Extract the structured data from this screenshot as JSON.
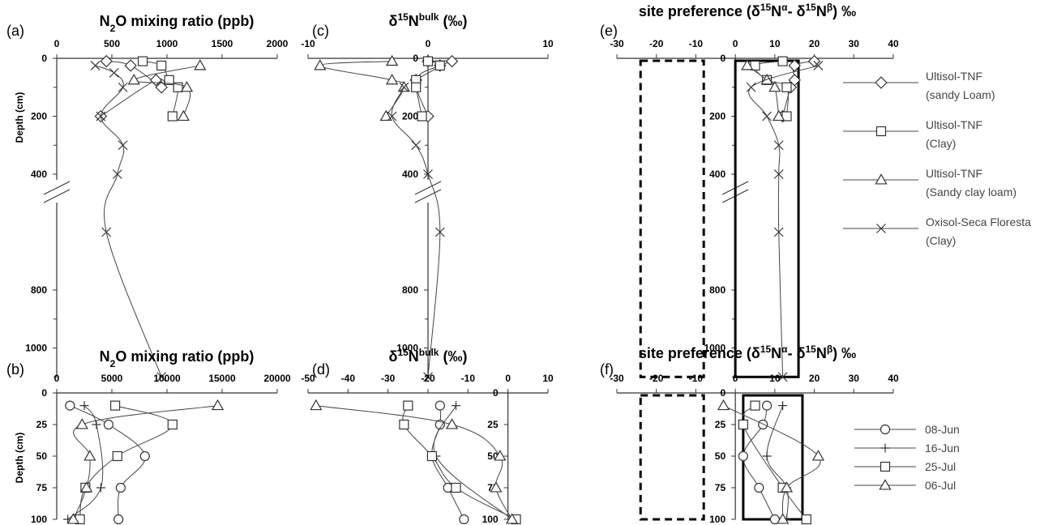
{
  "chart_data": [
    {
      "panel_label": "(a)",
      "title": "N₂O mixing ratio (ppb)",
      "title_parts": [
        "N",
        "2",
        "O mixing ratio (ppb)"
      ],
      "type": "line",
      "ylabel": "Depth (cm)",
      "xlim": [
        0,
        2000
      ],
      "xticks": [
        0,
        500,
        1000,
        1500,
        2000
      ],
      "ylim": [
        0,
        1100
      ],
      "yticks": [
        0,
        200,
        400,
        800,
        1000
      ],
      "axis_break": true,
      "series": [
        {
          "marker": "diamond",
          "points": [
            [
              450,
              10
            ],
            [
              670,
              25
            ],
            [
              950,
              100
            ],
            [
              900,
              75
            ],
            [
              400,
              200
            ]
          ]
        },
        {
          "marker": "square",
          "points": [
            [
              780,
              10
            ],
            [
              950,
              25
            ],
            [
              1020,
              75
            ],
            [
              1100,
              100
            ],
            [
              1050,
              200
            ]
          ]
        },
        {
          "marker": "triangle",
          "points": [
            [
              1300,
              25
            ],
            [
              700,
              75
            ],
            [
              1180,
              100
            ],
            [
              1150,
              200
            ]
          ]
        },
        {
          "marker": "x",
          "points": [
            [
              350,
              25
            ],
            [
              520,
              50
            ],
            [
              600,
              100
            ],
            [
              400,
              200
            ],
            [
              600,
              300
            ],
            [
              550,
              400
            ],
            [
              450,
              600
            ],
            [
              950,
              1100
            ]
          ]
        }
      ]
    },
    {
      "panel_label": "(c)",
      "title_parts": [
        "δ",
        "15",
        "N",
        "bulk",
        " (‰)"
      ],
      "type": "line",
      "xlim": [
        -10,
        10
      ],
      "xticks": [
        -10,
        0,
        10
      ],
      "ylim": [
        0,
        1100
      ],
      "yticks": [
        0,
        200,
        400,
        800,
        1000
      ],
      "axis_break": true,
      "series": [
        {
          "marker": "diamond",
          "points": [
            [
              0,
              10
            ],
            [
              2,
              10
            ],
            [
              1,
              25
            ],
            [
              -1,
              75
            ],
            [
              0,
              200
            ]
          ]
        },
        {
          "marker": "square",
          "points": [
            [
              0,
              10
            ],
            [
              1,
              25
            ],
            [
              -1,
              75
            ],
            [
              -1,
              100
            ],
            [
              -0.5,
              200
            ]
          ]
        },
        {
          "marker": "triangle",
          "points": [
            [
              -3,
              10
            ],
            [
              -9,
              25
            ],
            [
              -3,
              75
            ],
            [
              -2,
              100
            ],
            [
              -3.5,
              200
            ]
          ]
        },
        {
          "marker": "x",
          "points": [
            [
              -2,
              100
            ],
            [
              -3,
              200
            ],
            [
              -1,
              300
            ],
            [
              0,
              400
            ],
            [
              1,
              600
            ],
            [
              0,
              1100
            ]
          ]
        }
      ]
    },
    {
      "panel_label": "(e)",
      "title_parts": [
        "site preference (",
        "δ",
        "15",
        "N",
        "α",
        "- ",
        "δ",
        "15",
        "N",
        "β",
        ") ‰"
      ],
      "type": "line",
      "xlim": [
        -30,
        40
      ],
      "xticks": [
        -30,
        -20,
        -10,
        0,
        10,
        20,
        30,
        40
      ],
      "ylim": [
        0,
        1100
      ],
      "yticks": [
        0,
        200,
        400,
        800,
        1000
      ],
      "axis_break": true,
      "boxes": [
        {
          "style": "dashed",
          "x": [
            -24,
            -8
          ]
        },
        {
          "style": "solid",
          "x": [
            0,
            16
          ]
        }
      ],
      "series": [
        {
          "name": "Ultisol-TNF (sandy Loam)",
          "marker": "diamond",
          "points": [
            [
              20,
              10
            ],
            [
              15,
              25
            ],
            [
              15,
              75
            ],
            [
              14,
              100
            ],
            [
              12,
              200
            ]
          ]
        },
        {
          "name": "Ultisol-TNF (Clay)",
          "marker": "square",
          "points": [
            [
              12,
              10
            ],
            [
              5,
              25
            ],
            [
              8,
              75
            ],
            [
              13,
              100
            ],
            [
              13,
              200
            ]
          ]
        },
        {
          "name": "Ultisol-TNF (Sandy clay loam)",
          "marker": "triangle",
          "points": [
            [
              3,
              25
            ],
            [
              8,
              75
            ],
            [
              10,
              100
            ],
            [
              11,
              200
            ]
          ]
        },
        {
          "name": "Oxisol-Seca Floresta (Clay)",
          "marker": "x",
          "points": [
            [
              21,
              25
            ],
            [
              4,
              100
            ],
            [
              8,
              200
            ],
            [
              11,
              300
            ],
            [
              11,
              400
            ],
            [
              11,
              600
            ],
            [
              12,
              1100
            ]
          ]
        }
      ]
    },
    {
      "panel_label": "(b)",
      "title_parts": [
        "N",
        "2",
        "O mixing ratio (ppb)"
      ],
      "type": "line",
      "ylabel": "Depth (cm)",
      "xlim": [
        0,
        20000
      ],
      "xticks": [
        0,
        5000,
        10000,
        15000,
        20000
      ],
      "ylim": [
        0,
        100
      ],
      "yticks": [
        0,
        25,
        50,
        75,
        100
      ],
      "series": [
        {
          "name": "08-Jun",
          "marker": "circle",
          "points": [
            [
              1200,
              10
            ],
            [
              4700,
              25
            ],
            [
              8000,
              50
            ],
            [
              5800,
              75
            ],
            [
              5600,
              100
            ]
          ]
        },
        {
          "name": "16-Jun",
          "marker": "plus",
          "points": [
            [
              2500,
              10
            ],
            [
              3600,
              25
            ],
            [
              4000,
              75
            ],
            [
              1000,
              100
            ]
          ]
        },
        {
          "name": "25-Jul",
          "marker": "square",
          "points": [
            [
              5300,
              10
            ],
            [
              10500,
              25
            ],
            [
              5500,
              50
            ],
            [
              2600,
              75
            ],
            [
              2100,
              100
            ]
          ]
        },
        {
          "name": "06-Jul",
          "marker": "triangle",
          "points": [
            [
              14600,
              10
            ],
            [
              2300,
              25
            ],
            [
              3000,
              50
            ],
            [
              2700,
              75
            ],
            [
              1500,
              100
            ]
          ]
        }
      ]
    },
    {
      "panel_label": "(d)",
      "title_parts": [
        "δ",
        "15",
        "N",
        "bulk",
        " (‰)"
      ],
      "type": "line",
      "xlim": [
        -50,
        10
      ],
      "xticks": [
        -50,
        -40,
        -30,
        -20,
        -10,
        0,
        10
      ],
      "ylim": [
        0,
        100
      ],
      "yticks": [
        0,
        25,
        50,
        75,
        100
      ],
      "series": [
        {
          "name": "08-Jun",
          "marker": "circle",
          "points": [
            [
              -17,
              10
            ],
            [
              -17,
              25
            ],
            [
              -19,
              50
            ],
            [
              -15,
              75
            ],
            [
              -11,
              100
            ]
          ]
        },
        {
          "name": "16-Jun",
          "marker": "plus",
          "points": [
            [
              -13,
              10
            ],
            [
              -18,
              50
            ],
            [
              1,
              100
            ]
          ]
        },
        {
          "name": "25-Jul",
          "marker": "square",
          "points": [
            [
              -25,
              10
            ],
            [
              -26,
              25
            ],
            [
              -19,
              50
            ],
            [
              -13,
              75
            ],
            [
              2,
              100
            ]
          ]
        },
        {
          "name": "06-Jul",
          "marker": "triangle",
          "points": [
            [
              -48,
              10
            ],
            [
              -14,
              25
            ],
            [
              -2,
              50
            ],
            [
              -3,
              75
            ],
            [
              1,
              100
            ]
          ]
        }
      ]
    },
    {
      "panel_label": "(f)",
      "title_parts": [
        "site preference (",
        "δ",
        "15",
        "N",
        "α",
        "- ",
        "δ",
        "15",
        "N",
        "β",
        ") ‰"
      ],
      "type": "line",
      "xlim": [
        -30,
        40
      ],
      "xticks": [
        -30,
        -20,
        -10,
        0,
        10,
        20,
        30,
        40
      ],
      "ylim": [
        0,
        100
      ],
      "yticks": [
        0,
        25,
        50,
        75,
        100
      ],
      "boxes": [
        {
          "style": "dashed",
          "x": [
            -24,
            -8
          ]
        },
        {
          "style": "solid",
          "x": [
            2,
            17
          ]
        }
      ],
      "series": [
        {
          "name": "08-Jun",
          "marker": "circle",
          "points": [
            [
              8,
              10
            ],
            [
              7,
              25
            ],
            [
              2,
              50
            ],
            [
              6,
              75
            ],
            [
              10,
              100
            ]
          ]
        },
        {
          "name": "16-Jun",
          "marker": "plus",
          "points": [
            [
              12,
              10
            ],
            [
              8,
              50
            ],
            [
              13,
              75
            ],
            [
              13,
              100
            ]
          ]
        },
        {
          "name": "25-Jul",
          "marker": "square",
          "points": [
            [
              5,
              10
            ],
            [
              2,
              25
            ],
            [
              12,
              75
            ],
            [
              18,
              100
            ]
          ]
        },
        {
          "name": "06-Jul",
          "marker": "triangle",
          "points": [
            [
              -3,
              10
            ],
            [
              21,
              50
            ],
            [
              13,
              75
            ],
            [
              12,
              100
            ]
          ]
        }
      ]
    }
  ],
  "legend_top": [
    {
      "line1": "Ultisol-TNF",
      "line2": "(sandy Loam)",
      "marker": "diamond"
    },
    {
      "line1": "Ultisol-TNF",
      "line2": "(Clay)",
      "marker": "square"
    },
    {
      "line1": "Ultisol-TNF",
      "line2": "(Sandy clay loam)",
      "marker": "triangle"
    },
    {
      "line1": "Oxisol-Seca Floresta",
      "line2": "(Clay)",
      "marker": "x"
    }
  ],
  "legend_bottom": [
    {
      "label": "08-Jun",
      "marker": "circle"
    },
    {
      "label": "16-Jun",
      "marker": "plus"
    },
    {
      "label": "25-Jul",
      "marker": "square"
    },
    {
      "label": "06-Jul",
      "marker": "triangle"
    }
  ]
}
